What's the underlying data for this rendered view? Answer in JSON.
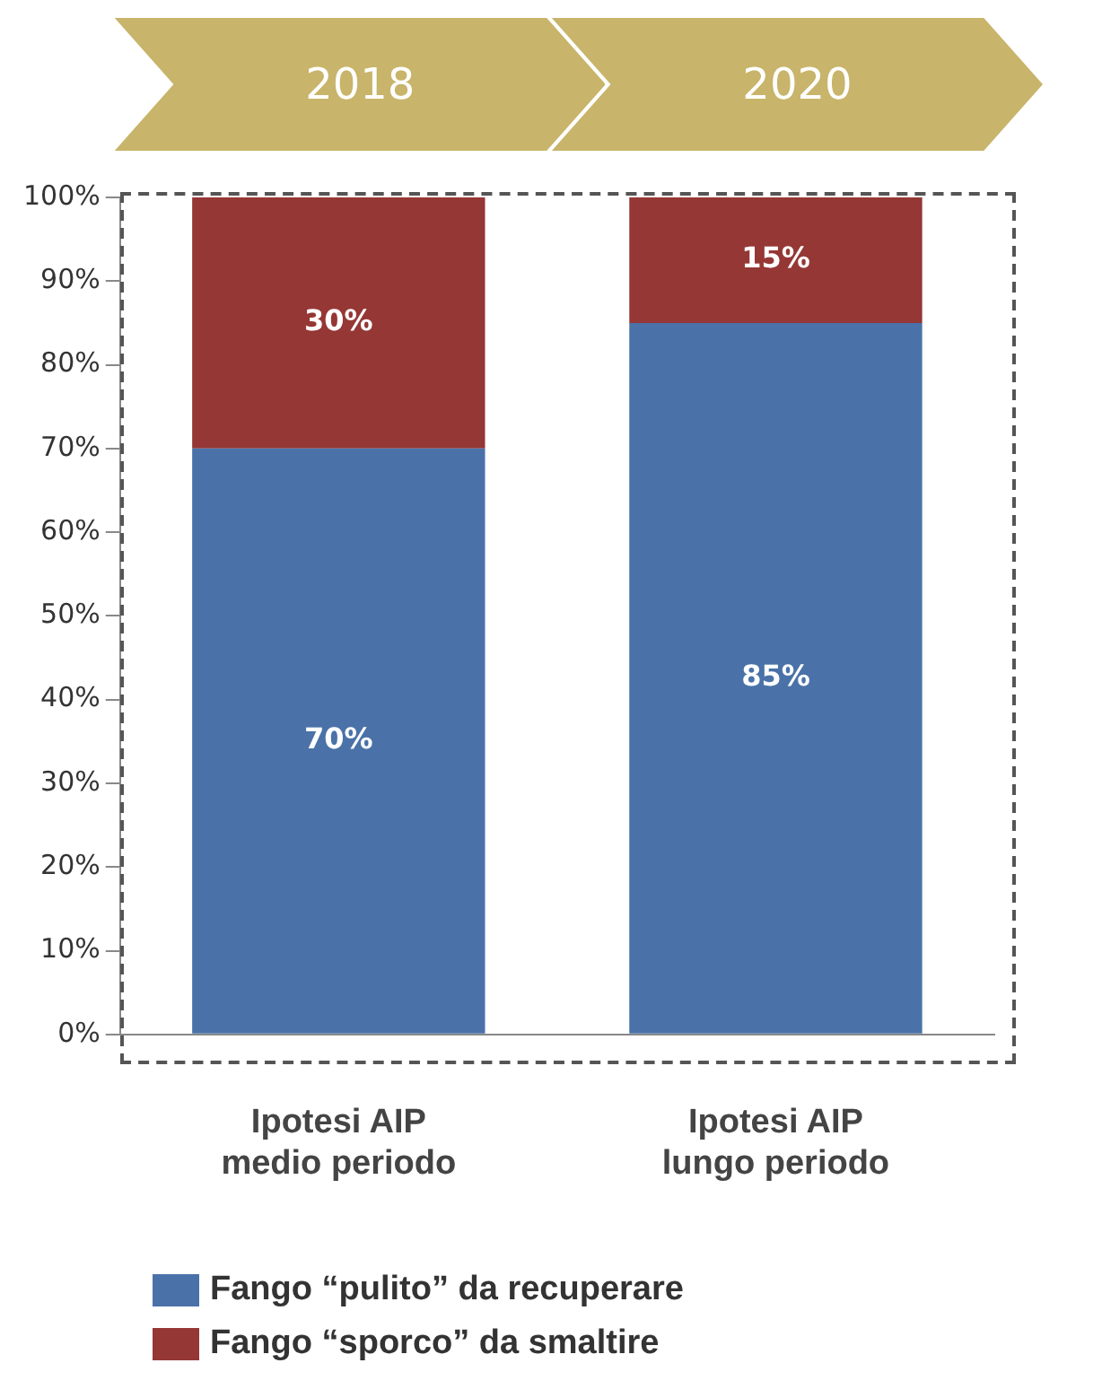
{
  "chart_data": {
    "type": "bar",
    "stacked": true,
    "categories": [
      "Ipotesi AIP\nmedio periodo",
      "Ipotesi AIP\nlungo periodo"
    ],
    "series": [
      {
        "name": "Fango “pulito” da recuperare",
        "color": "#4a72a8",
        "values": [
          70,
          85
        ],
        "value_labels": [
          "70%",
          "85%"
        ]
      },
      {
        "name": "Fango “sporco” da smaltire",
        "color": "#953735",
        "values": [
          30,
          15
        ],
        "value_labels": [
          "30%",
          "15%"
        ]
      }
    ],
    "ylim": [
      0,
      100
    ],
    "yticks": [
      {
        "value": 0,
        "label": "0%"
      },
      {
        "value": 10,
        "label": "10%"
      },
      {
        "value": 20,
        "label": "20%"
      },
      {
        "value": 30,
        "label": "30%"
      },
      {
        "value": 40,
        "label": "40%"
      },
      {
        "value": 50,
        "label": "50%"
      },
      {
        "value": 60,
        "label": "60%"
      },
      {
        "value": 70,
        "label": "70%"
      },
      {
        "value": 80,
        "label": "80%"
      },
      {
        "value": 90,
        "label": "90%"
      },
      {
        "value": 100,
        "label": "100%"
      }
    ],
    "annotations": [
      "2018",
      "2020"
    ],
    "grid": false,
    "legend": "bottom"
  }
}
